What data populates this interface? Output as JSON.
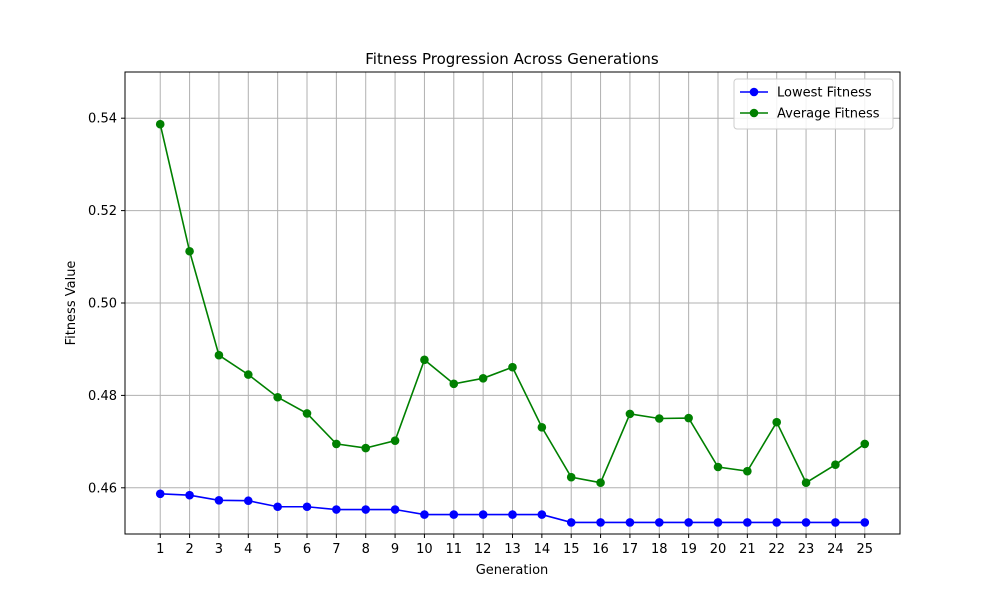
{
  "chart_data": {
    "type": "line",
    "title": "Fitness Progression Across Generations",
    "xlabel": "Generation",
    "ylabel": "Fitness Value",
    "x": [
      1,
      2,
      3,
      4,
      5,
      6,
      7,
      8,
      9,
      10,
      11,
      12,
      13,
      14,
      15,
      16,
      17,
      18,
      19,
      20,
      21,
      22,
      23,
      24,
      25
    ],
    "xlim": [
      -0.2,
      26.2
    ],
    "ylim": [
      0.45,
      0.55
    ],
    "yticks": [
      "0.46",
      "0.48",
      "0.50",
      "0.52",
      "0.54"
    ],
    "grid": true,
    "legend_position": "top-right",
    "series": [
      {
        "name": "Lowest Fitness",
        "color": "#0000ff",
        "marker": "circle",
        "values": [
          0.4587,
          0.4584,
          0.4573,
          0.4572,
          0.4559,
          0.4559,
          0.4553,
          0.4553,
          0.4553,
          0.4542,
          0.4542,
          0.4542,
          0.4542,
          0.4542,
          0.4525,
          0.4525,
          0.4525,
          0.4525,
          0.4525,
          0.4525,
          0.4525,
          0.4525,
          0.4525,
          0.4525,
          0.4525
        ]
      },
      {
        "name": "Average Fitness",
        "color": "#008000",
        "marker": "circle",
        "values": [
          0.5387,
          0.5112,
          0.4887,
          0.4845,
          0.4796,
          0.4761,
          0.4695,
          0.4686,
          0.4702,
          0.4877,
          0.4825,
          0.4837,
          0.4861,
          0.4731,
          0.4623,
          0.4611,
          0.476,
          0.475,
          0.4751,
          0.4645,
          0.4636,
          0.4742,
          0.4611,
          0.465,
          0.4695
        ]
      }
    ]
  }
}
